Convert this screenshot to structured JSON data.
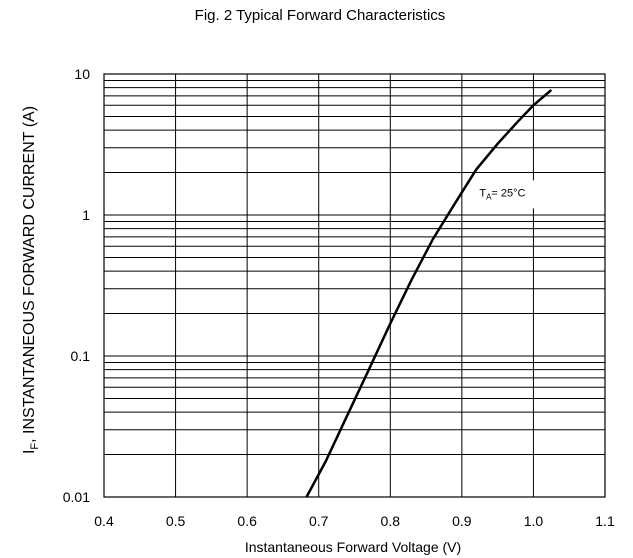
{
  "chart_data": {
    "type": "line",
    "title": "Fig. 2 Typical Forward Characteristics",
    "xlabel": "Instantaneous Forward Voltage (V)",
    "ylabel": {
      "prefix": "I",
      "sub": "F",
      "rest": ", INSTANTANEOUS FORWARD CURRENT (A)"
    },
    "xlim": [
      0.4,
      1.1
    ],
    "ylim": [
      0.01,
      10
    ],
    "yscale": "log",
    "grid": true,
    "xticks": [
      {
        "value": 0.4,
        "label": "0.4"
      },
      {
        "value": 0.5,
        "label": "0.5"
      },
      {
        "value": 0.6,
        "label": "0.6"
      },
      {
        "value": 0.7,
        "label": "0.7"
      },
      {
        "value": 0.8,
        "label": "0.8"
      },
      {
        "value": 0.9,
        "label": "0.9"
      },
      {
        "value": 1.0,
        "label": "1.0"
      },
      {
        "value": 1.1,
        "label": "1.1"
      }
    ],
    "yticks": [
      {
        "value": 0.01,
        "label": "0.01"
      },
      {
        "value": 0.1,
        "label": "0.1"
      },
      {
        "value": 1,
        "label": "1"
      },
      {
        "value": 10,
        "label": "10"
      }
    ],
    "series": [
      {
        "color": "#000000",
        "points": [
          [
            0.683,
            0.01
          ],
          [
            0.71,
            0.018
          ],
          [
            0.74,
            0.038
          ],
          [
            0.77,
            0.08
          ],
          [
            0.8,
            0.17
          ],
          [
            0.83,
            0.35
          ],
          [
            0.86,
            0.68
          ],
          [
            0.89,
            1.2
          ],
          [
            0.92,
            2.1
          ],
          [
            0.95,
            3.2
          ],
          [
            0.98,
            4.7
          ],
          [
            1.0,
            6.0
          ],
          [
            1.025,
            7.7
          ]
        ]
      }
    ],
    "annotation": {
      "main": "T",
      "sub": "A",
      "rest": "= 25°C",
      "x": 0.93,
      "y": 1.4
    }
  }
}
